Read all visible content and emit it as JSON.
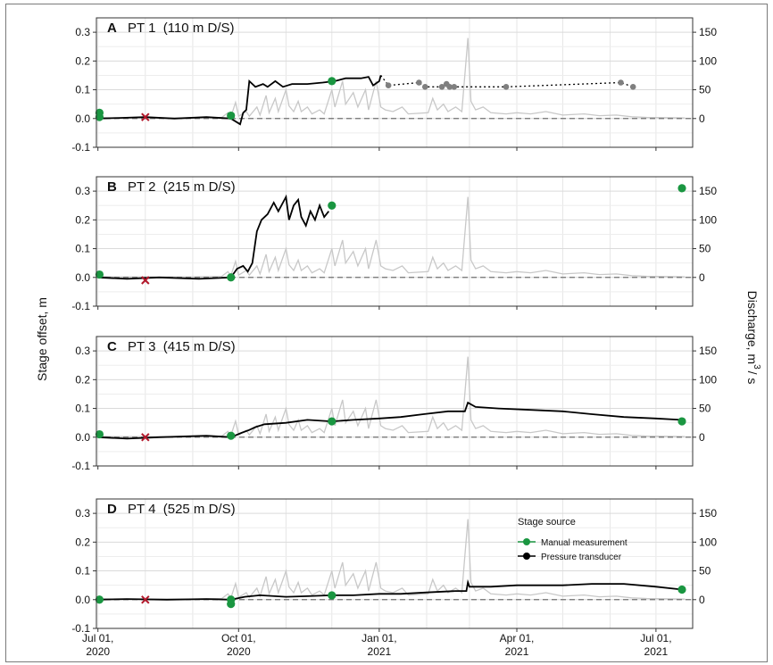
{
  "chart_data": {
    "type": "line",
    "y_axis_label": "Stage offset, m",
    "y2_axis_label": [
      "Discharge, m",
      "3",
      "/ s"
    ],
    "x_ticks": [
      {
        "date": "2020-07-01",
        "label": [
          "Jul 01,",
          "2020"
        ]
      },
      {
        "date": "2020-10-01",
        "label": [
          "Oct 01,",
          "2020"
        ]
      },
      {
        "date": "2021-01-01",
        "label": [
          "Jan 01,",
          "2021"
        ]
      },
      {
        "date": "2021-04-01",
        "label": [
          "Apr 01,",
          "2021"
        ]
      },
      {
        "date": "2021-07-01",
        "label": [
          "Jul 01,",
          "2021"
        ]
      }
    ],
    "xlim": [
      "2020-06-30",
      "2021-07-25"
    ],
    "ylim": [
      -0.1,
      0.35
    ],
    "y_ticks": [
      "0.3",
      "0.2",
      "0.1",
      "0.0",
      "-0.1"
    ],
    "y2lim": [
      -50,
      175
    ],
    "y2_ticks": [
      "150",
      "100",
      "50",
      "0"
    ],
    "legend": {
      "title": "Stage source",
      "items": [
        {
          "label": "Manual measurement",
          "color": "#1a9641"
        },
        {
          "label": "Pressure transducer",
          "color": "#000000"
        }
      ]
    },
    "colors": {
      "manual": "#1a9641",
      "transducer": "#000000",
      "gap": "#7f7f7f",
      "excluded": "#b2182b",
      "discharge": "#c8c8c8",
      "zero": "#707070"
    },
    "discharge": [
      [
        "2020-06-30",
        2
      ],
      [
        "2020-07-10",
        1
      ],
      [
        "2020-08-01",
        1
      ],
      [
        "2020-09-01",
        1
      ],
      [
        "2020-09-20",
        2
      ],
      [
        "2020-09-24",
        10
      ],
      [
        "2020-09-26",
        3
      ],
      [
        "2020-09-29",
        28
      ],
      [
        "2020-10-01",
        4
      ],
      [
        "2020-10-06",
        12
      ],
      [
        "2020-10-08",
        4
      ],
      [
        "2020-10-13",
        20
      ],
      [
        "2020-10-15",
        6
      ],
      [
        "2020-10-19",
        40
      ],
      [
        "2020-10-21",
        10
      ],
      [
        "2020-10-25",
        35
      ],
      [
        "2020-10-27",
        12
      ],
      [
        "2020-11-01",
        50
      ],
      [
        "2020-11-03",
        22
      ],
      [
        "2020-11-06",
        12
      ],
      [
        "2020-11-09",
        30
      ],
      [
        "2020-11-11",
        12
      ],
      [
        "2020-11-15",
        20
      ],
      [
        "2020-11-18",
        8
      ],
      [
        "2020-11-23",
        15
      ],
      [
        "2020-11-26",
        8
      ],
      [
        "2020-12-01",
        50
      ],
      [
        "2020-12-03",
        20
      ],
      [
        "2020-12-08",
        65
      ],
      [
        "2020-12-10",
        25
      ],
      [
        "2020-12-15",
        45
      ],
      [
        "2020-12-18",
        20
      ],
      [
        "2020-12-23",
        50
      ],
      [
        "2020-12-25",
        15
      ],
      [
        "2020-12-30",
        65
      ],
      [
        "2021-01-02",
        20
      ],
      [
        "2021-01-05",
        15
      ],
      [
        "2021-01-10",
        12
      ],
      [
        "2021-01-16",
        20
      ],
      [
        "2021-01-20",
        8
      ],
      [
        "2021-02-02",
        10
      ],
      [
        "2021-02-05",
        35
      ],
      [
        "2021-02-08",
        15
      ],
      [
        "2021-02-12",
        25
      ],
      [
        "2021-02-15",
        12
      ],
      [
        "2021-02-20",
        20
      ],
      [
        "2021-02-24",
        12
      ],
      [
        "2021-02-28",
        140
      ],
      [
        "2021-03-02",
        30
      ],
      [
        "2021-03-05",
        15
      ],
      [
        "2021-03-10",
        20
      ],
      [
        "2021-03-15",
        10
      ],
      [
        "2021-03-25",
        8
      ],
      [
        "2021-04-01",
        10
      ],
      [
        "2021-04-10",
        8
      ],
      [
        "2021-04-20",
        12
      ],
      [
        "2021-05-01",
        6
      ],
      [
        "2021-05-15",
        8
      ],
      [
        "2021-05-25",
        5
      ],
      [
        "2021-06-05",
        6
      ],
      [
        "2021-06-15",
        3
      ],
      [
        "2021-06-25",
        2
      ],
      [
        "2021-07-20",
        1
      ]
    ],
    "panels": [
      {
        "letter": "A",
        "title": "PT 1  (110 m D/S)",
        "pressure_transducer": [
          [
            "2020-07-01",
            0.0
          ],
          [
            "2020-07-15",
            0.002
          ],
          [
            "2020-08-01",
            0.005
          ],
          [
            "2020-08-20",
            0.0
          ],
          [
            "2020-09-10",
            0.005
          ],
          [
            "2020-09-26",
            0.0
          ],
          [
            "2020-10-02",
            -0.02
          ],
          [
            "2020-10-04",
            0.02
          ],
          [
            "2020-10-06",
            0.03
          ],
          [
            "2020-10-08",
            0.13
          ],
          [
            "2020-10-12",
            0.11
          ],
          [
            "2020-10-17",
            0.12
          ],
          [
            "2020-10-20",
            0.11
          ],
          [
            "2020-10-25",
            0.13
          ],
          [
            "2020-10-30",
            0.11
          ],
          [
            "2020-11-05",
            0.12
          ],
          [
            "2020-11-15",
            0.12
          ],
          [
            "2020-11-25",
            0.125
          ],
          [
            "2020-12-03",
            0.13
          ],
          [
            "2020-12-10",
            0.14
          ],
          [
            "2020-12-20",
            0.14
          ],
          [
            "2020-12-25",
            0.145
          ],
          [
            "2020-12-28",
            0.115
          ],
          [
            "2021-01-01",
            0.13
          ],
          [
            "2021-01-02",
            0.15
          ]
        ],
        "gap_points": [
          [
            "2021-01-07",
            0.115
          ],
          [
            "2021-01-27",
            0.125
          ],
          [
            "2021-01-31",
            0.11
          ],
          [
            "2021-02-11",
            0.11
          ],
          [
            "2021-02-14",
            0.12
          ],
          [
            "2021-02-16",
            0.11
          ],
          [
            "2021-02-19",
            0.11
          ],
          [
            "2021-03-25",
            0.11
          ],
          [
            "2021-06-08",
            0.125
          ],
          [
            "2021-06-16",
            0.11
          ]
        ],
        "manual": [
          [
            "2020-07-02",
            0.02
          ],
          [
            "2020-07-02",
            0.005
          ],
          [
            "2020-09-26",
            0.01
          ],
          [
            "2020-12-01",
            0.13
          ]
        ],
        "excluded": [
          [
            "2020-08-01",
            0.005
          ]
        ]
      },
      {
        "letter": "B",
        "title": "PT 2  (215 m D/S)",
        "pressure_transducer": [
          [
            "2020-07-01",
            0.0
          ],
          [
            "2020-07-20",
            -0.005
          ],
          [
            "2020-08-10",
            0.0
          ],
          [
            "2020-09-05",
            -0.005
          ],
          [
            "2020-09-26",
            0.0
          ],
          [
            "2020-09-30",
            0.03
          ],
          [
            "2020-10-04",
            0.04
          ],
          [
            "2020-10-07",
            0.02
          ],
          [
            "2020-10-10",
            0.05
          ],
          [
            "2020-10-13",
            0.16
          ],
          [
            "2020-10-16",
            0.2
          ],
          [
            "2020-10-20",
            0.22
          ],
          [
            "2020-10-24",
            0.26
          ],
          [
            "2020-10-27",
            0.23
          ],
          [
            "2020-11-01",
            0.28
          ],
          [
            "2020-11-03",
            0.2
          ],
          [
            "2020-11-06",
            0.25
          ],
          [
            "2020-11-09",
            0.27
          ],
          [
            "2020-11-11",
            0.21
          ],
          [
            "2020-11-14",
            0.18
          ],
          [
            "2020-11-17",
            0.23
          ],
          [
            "2020-11-20",
            0.2
          ],
          [
            "2020-11-23",
            0.25
          ],
          [
            "2020-11-26",
            0.21
          ],
          [
            "2020-11-29",
            0.23
          ]
        ],
        "gap_points": [],
        "manual": [
          [
            "2020-07-02",
            0.01
          ],
          [
            "2020-09-26",
            0.0
          ],
          [
            "2020-12-01",
            0.25
          ],
          [
            "2021-07-18",
            0.31
          ]
        ],
        "excluded": [
          [
            "2020-08-01",
            -0.01
          ]
        ]
      },
      {
        "letter": "C",
        "title": "PT 3  (415 m D/S)",
        "pressure_transducer": [
          [
            "2020-07-01",
            0.0
          ],
          [
            "2020-07-20",
            -0.005
          ],
          [
            "2020-08-10",
            0.0
          ],
          [
            "2020-09-10",
            0.005
          ],
          [
            "2020-09-26",
            0.0
          ],
          [
            "2020-10-03",
            0.015
          ],
          [
            "2020-10-08",
            0.025
          ],
          [
            "2020-10-12",
            0.035
          ],
          [
            "2020-10-18",
            0.045
          ],
          [
            "2020-11-01",
            0.05
          ],
          [
            "2020-11-15",
            0.06
          ],
          [
            "2020-12-01",
            0.055
          ],
          [
            "2020-12-15",
            0.06
          ],
          [
            "2021-01-01",
            0.065
          ],
          [
            "2021-01-15",
            0.07
          ],
          [
            "2021-01-30",
            0.08
          ],
          [
            "2021-02-15",
            0.09
          ],
          [
            "2021-02-26",
            0.09
          ],
          [
            "2021-02-28",
            0.12
          ],
          [
            "2021-03-05",
            0.105
          ],
          [
            "2021-03-20",
            0.1
          ],
          [
            "2021-04-10",
            0.095
          ],
          [
            "2021-05-01",
            0.09
          ],
          [
            "2021-05-20",
            0.08
          ],
          [
            "2021-06-10",
            0.07
          ],
          [
            "2021-07-01",
            0.065
          ],
          [
            "2021-07-18",
            0.06
          ]
        ],
        "gap_points": [],
        "manual": [
          [
            "2020-07-02",
            0.01
          ],
          [
            "2020-09-26",
            0.005
          ],
          [
            "2020-12-01",
            0.055
          ],
          [
            "2021-07-18",
            0.055
          ]
        ],
        "excluded": [
          [
            "2020-08-01",
            0.0
          ]
        ]
      },
      {
        "letter": "D",
        "title": "PT 4  (525 m D/S)",
        "pressure_transducer": [
          [
            "2020-07-01",
            0.0
          ],
          [
            "2020-07-20",
            0.002
          ],
          [
            "2020-08-15",
            0.0
          ],
          [
            "2020-09-10",
            0.002
          ],
          [
            "2020-09-26",
            0.0
          ],
          [
            "2020-10-05",
            0.01
          ],
          [
            "2020-10-15",
            0.015
          ],
          [
            "2020-11-01",
            0.01
          ],
          [
            "2020-11-15",
            0.012
          ],
          [
            "2020-12-01",
            0.015
          ],
          [
            "2020-12-15",
            0.015
          ],
          [
            "2021-01-01",
            0.02
          ],
          [
            "2021-01-15",
            0.02
          ],
          [
            "2021-02-01",
            0.025
          ],
          [
            "2021-02-20",
            0.03
          ],
          [
            "2021-02-27",
            0.03
          ],
          [
            "2021-02-28",
            0.06
          ],
          [
            "2021-03-01",
            0.045
          ],
          [
            "2021-03-15",
            0.045
          ],
          [
            "2021-04-01",
            0.05
          ],
          [
            "2021-05-01",
            0.05
          ],
          [
            "2021-05-20",
            0.055
          ],
          [
            "2021-06-10",
            0.055
          ],
          [
            "2021-07-01",
            0.045
          ],
          [
            "2021-07-18",
            0.035
          ]
        ],
        "gap_points": [],
        "manual": [
          [
            "2020-07-02",
            0.0
          ],
          [
            "2020-09-26",
            -0.015
          ],
          [
            "2020-09-26",
            0.0
          ],
          [
            "2020-12-01",
            0.015
          ],
          [
            "2021-07-18",
            0.035
          ]
        ],
        "excluded": [
          [
            "2020-08-01",
            0.0
          ]
        ]
      }
    ]
  }
}
